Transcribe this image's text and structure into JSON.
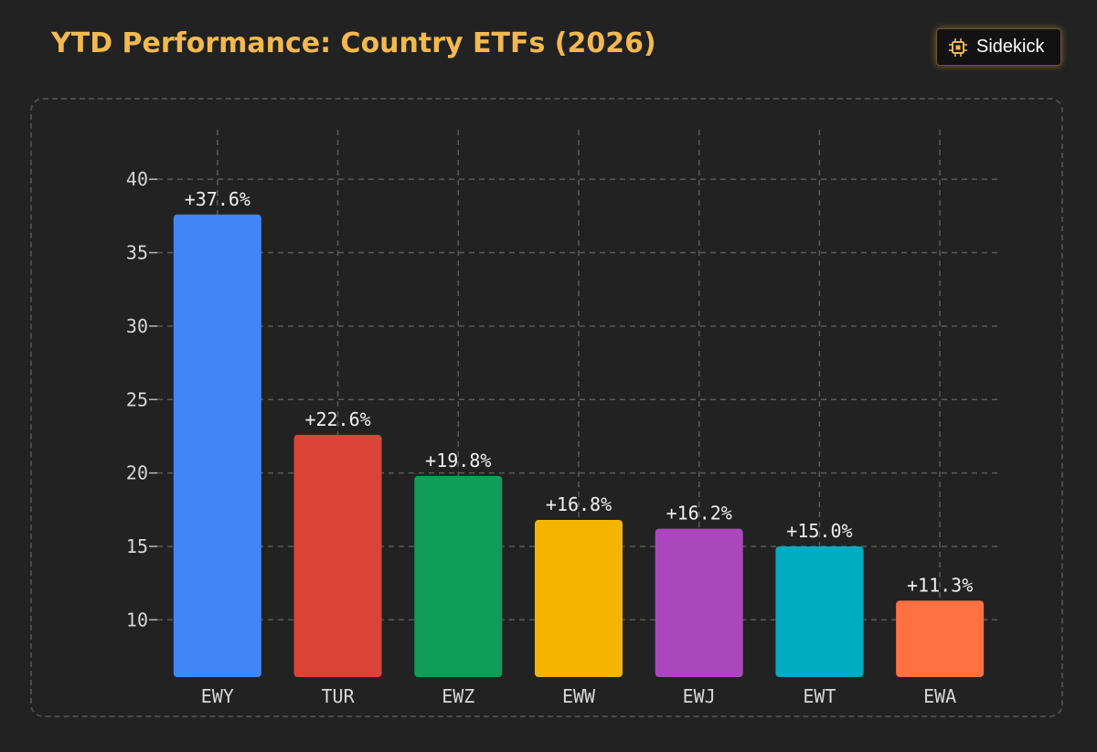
{
  "header": {
    "title": "YTD Performance: Country ETFs (2026)"
  },
  "badge": {
    "label": "Sidekick",
    "icon": "chip-icon",
    "accent": "#f3b94f"
  },
  "chart_data": {
    "type": "bar",
    "title": "YTD Performance: Country ETFs (2026)",
    "xlabel": "",
    "ylabel": "",
    "categories": [
      "EWY",
      "TUR",
      "EWZ",
      "EWW",
      "EWJ",
      "EWT",
      "EWA"
    ],
    "values": [
      37.6,
      22.6,
      19.8,
      16.8,
      16.2,
      15.0,
      11.3
    ],
    "value_labels": [
      "+37.6%",
      "+22.6%",
      "+19.8%",
      "+16.8%",
      "+16.2%",
      "+15.0%",
      "+11.3%"
    ],
    "colors": [
      "#4285f4",
      "#db4437",
      "#0f9d58",
      "#f4b400",
      "#ab47bc",
      "#00acc1",
      "#ff7043"
    ],
    "yticks": [
      10,
      15,
      20,
      25,
      30,
      35,
      40
    ],
    "ylim": [
      6.1,
      42.5
    ],
    "grid": true,
    "legend": "none"
  }
}
